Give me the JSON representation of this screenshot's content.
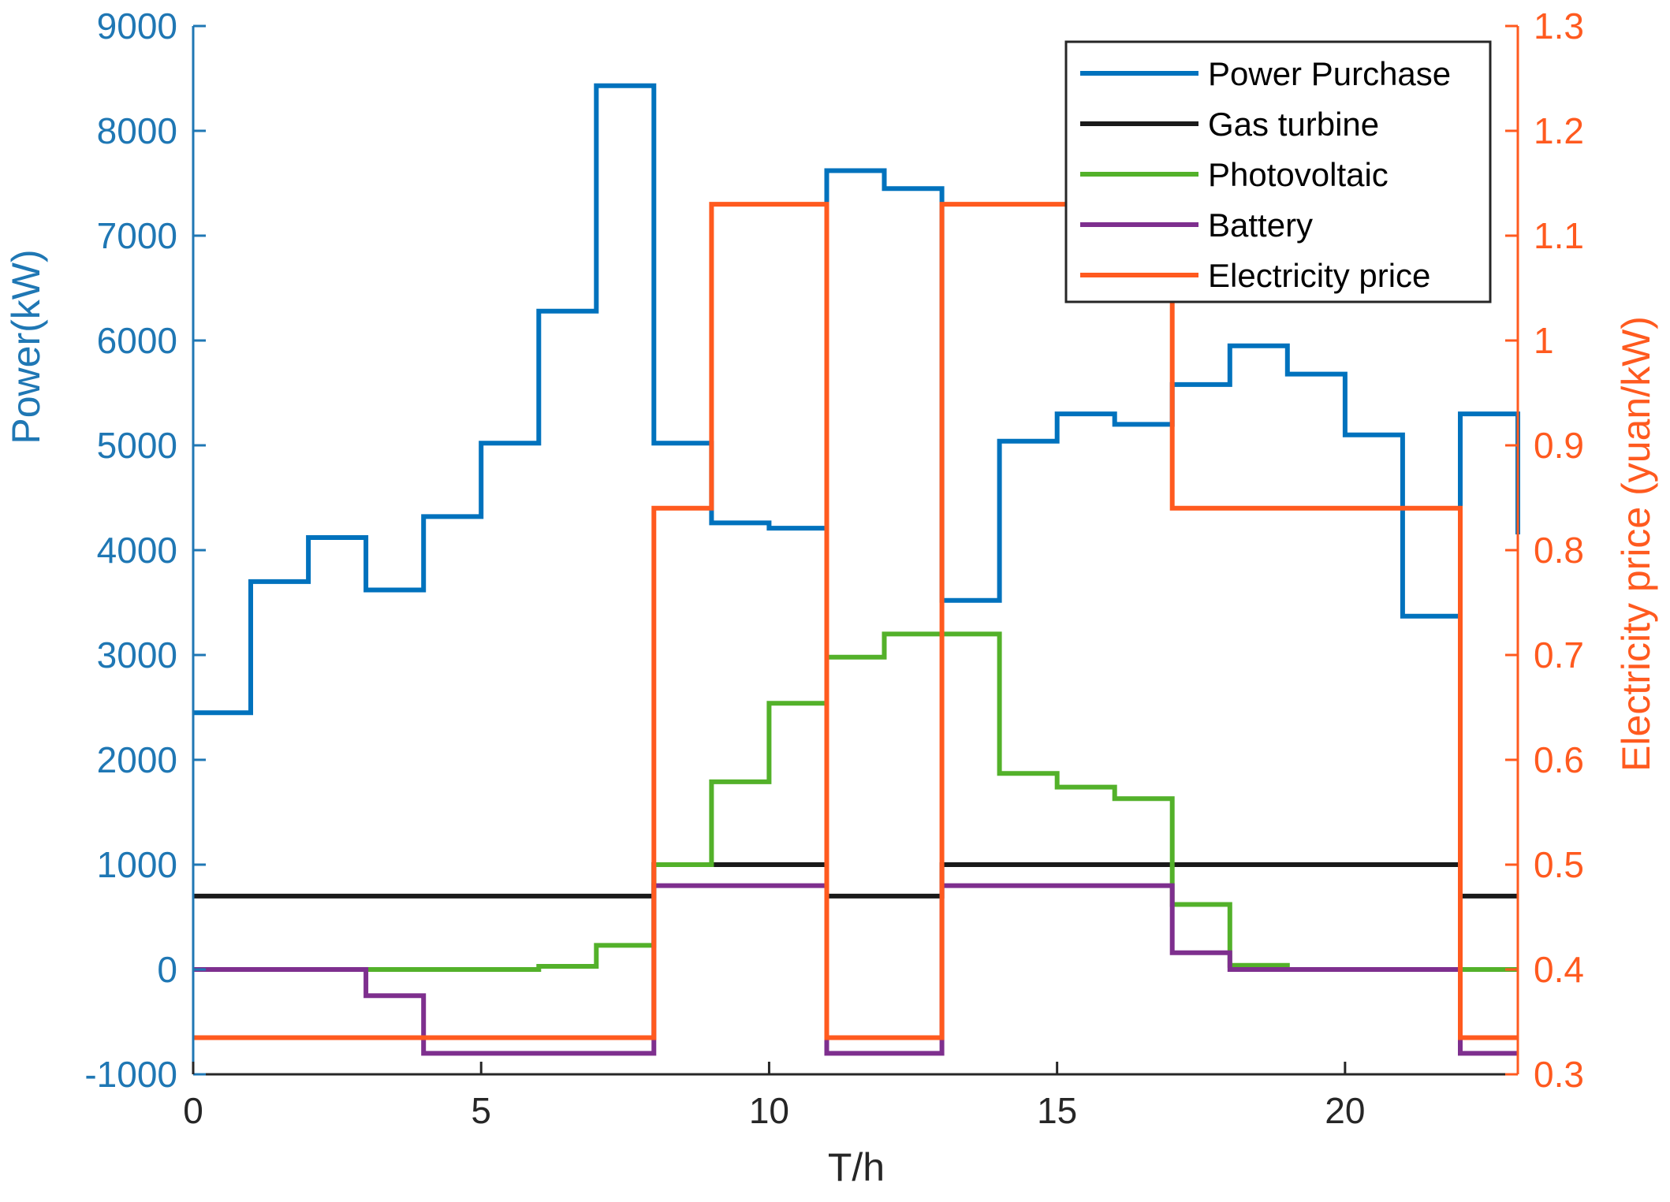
{
  "chart_data": {
    "type": "line",
    "step": true,
    "xlabel": "T/h",
    "ylabel": "Power(kW)",
    "y2label": "Electricity price (yuan/kW)",
    "xlim": [
      0,
      23
    ],
    "ylim": [
      -1000,
      9000
    ],
    "y2lim": [
      0.3,
      1.3
    ],
    "xticks": [
      0,
      5,
      10,
      15,
      20
    ],
    "yticks": [
      -1000,
      0,
      1000,
      2000,
      3000,
      4000,
      5000,
      6000,
      7000,
      8000,
      9000
    ],
    "y2ticks": [
      "0.3",
      "0.4",
      "0.5",
      "0.6",
      "0.7",
      "0.8",
      "0.9",
      "1",
      "1.1",
      "1.2",
      "1.3"
    ],
    "grid": false,
    "legend_position": "top-right",
    "x": [
      0,
      1,
      2,
      3,
      4,
      5,
      6,
      7,
      8,
      9,
      10,
      11,
      12,
      13,
      14,
      15,
      16,
      17,
      18,
      19,
      20,
      21,
      22,
      23
    ],
    "series": [
      {
        "name": "Power Purchase",
        "axis": "left",
        "color": "#0072bd",
        "values": [
          2450,
          3700,
          4120,
          3620,
          4320,
          5020,
          6280,
          8430,
          5020,
          4260,
          4210,
          7620,
          7450,
          3520,
          5040,
          5300,
          5200,
          5580,
          5950,
          5680,
          5100,
          3370,
          5300,
          4150
        ]
      },
      {
        "name": "Gas turbine",
        "axis": "left",
        "color": "#1a1a1a",
        "values": [
          700,
          700,
          700,
          700,
          700,
          700,
          700,
          700,
          1000,
          1000,
          1000,
          700,
          700,
          1000,
          1000,
          1000,
          1000,
          1000,
          1000,
          1000,
          1000,
          1000,
          700,
          700
        ]
      },
      {
        "name": "Photovoltaic",
        "axis": "left",
        "color": "#53b12a",
        "values": [
          0,
          0,
          0,
          0,
          0,
          0,
          30,
          230,
          1000,
          1790,
          2540,
          2980,
          3200,
          3200,
          1870,
          1740,
          1630,
          620,
          40,
          0,
          0,
          0,
          0,
          0
        ]
      },
      {
        "name": "Battery",
        "axis": "left",
        "color": "#7e2f8e",
        "values": [
          0,
          0,
          0,
          -250,
          -800,
          -800,
          -800,
          -800,
          800,
          800,
          800,
          -800,
          -800,
          800,
          800,
          800,
          800,
          160,
          0,
          0,
          0,
          0,
          -800,
          -800
        ]
      },
      {
        "name": "Electricity price",
        "axis": "right",
        "color": "#ff5a1f",
        "values": [
          0.335,
          0.335,
          0.335,
          0.335,
          0.335,
          0.335,
          0.335,
          0.335,
          0.84,
          1.13,
          1.13,
          0.335,
          0.335,
          1.13,
          1.13,
          1.13,
          1.13,
          0.84,
          0.84,
          0.84,
          0.84,
          0.84,
          0.335,
          0.335
        ]
      }
    ]
  }
}
